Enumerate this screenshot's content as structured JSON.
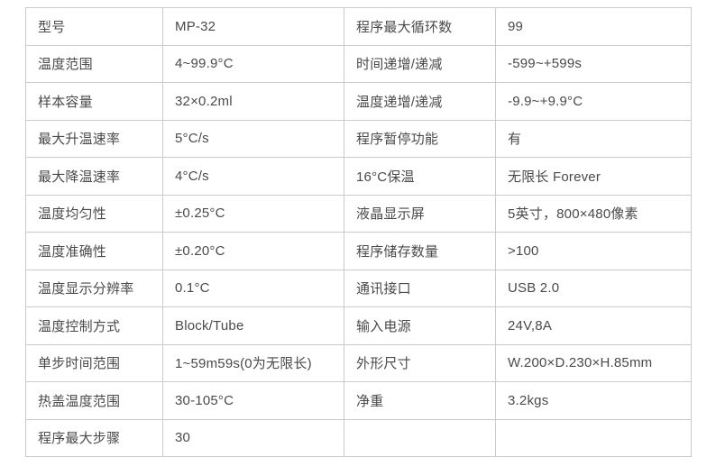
{
  "page": {
    "background_color": "#ffffff",
    "text_color": "#4a4a4a",
    "border_color": "#cbcbcb"
  },
  "spec_table": {
    "description": "MP-32 instrument specification table",
    "rows": [
      [
        "型号",
        "MP-32",
        "程序最大循环数",
        "99"
      ],
      [
        "温度范围",
        "4~99.9°C",
        "时间递增/递减",
        "-599~+599s"
      ],
      [
        "样本容量",
        "32×0.2ml",
        "温度递增/递减",
        "-9.9~+9.9°C"
      ],
      [
        "最大升温速率",
        "5°C/s",
        "程序暂停功能",
        "有"
      ],
      [
        "最大降温速率",
        "4°C/s",
        "16°C保温",
        "无限长 Forever"
      ],
      [
        "温度均匀性",
        "±0.25°C",
        "液晶显示屏",
        "5英寸，800×480像素"
      ],
      [
        "温度准确性",
        "±0.20°C",
        "程序储存数量",
        ">100"
      ],
      [
        "温度显示分辨率",
        "0.1°C",
        "通讯接口",
        "USB 2.0"
      ],
      [
        "温度控制方式",
        "Block/Tube",
        "输入电源",
        "24V,8A"
      ],
      [
        "单步时间范围",
        "1~59m59s(0为无限长)",
        "外形尺寸",
        "W.200×D.230×H.85mm"
      ],
      [
        "热盖温度范围",
        "30-105°C",
        "净重",
        "3.2kgs"
      ],
      [
        "程序最大步骤",
        "30",
        "",
        ""
      ]
    ]
  }
}
